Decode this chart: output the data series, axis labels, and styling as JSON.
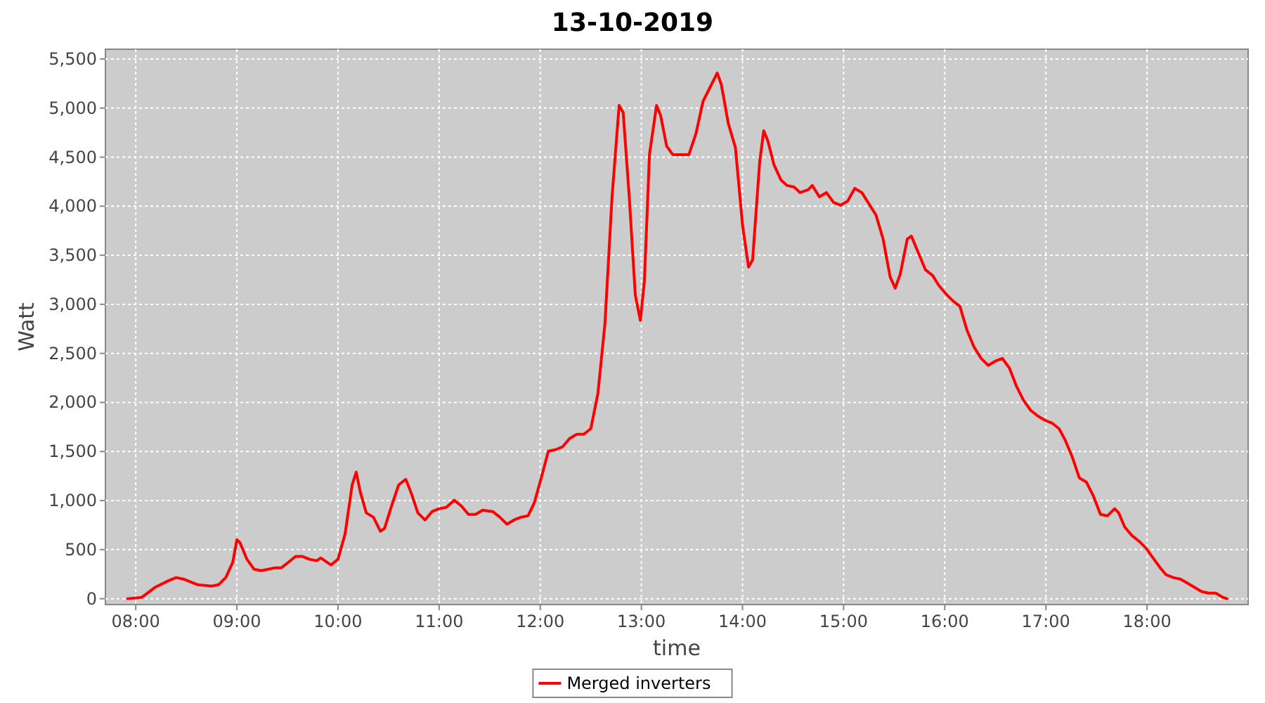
{
  "chart_data": {
    "type": "line",
    "title": "13-10-2019",
    "xlabel": "time",
    "ylabel": "Watt",
    "xlim": [
      7.7,
      19.0
    ],
    "ylim": [
      -60,
      5600
    ],
    "xticks": [
      {
        "value": 8,
        "label": "08:00"
      },
      {
        "value": 9,
        "label": "09:00"
      },
      {
        "value": 10,
        "label": "10:00"
      },
      {
        "value": 11,
        "label": "11:00"
      },
      {
        "value": 12,
        "label": "12:00"
      },
      {
        "value": 13,
        "label": "13:00"
      },
      {
        "value": 14,
        "label": "14:00"
      },
      {
        "value": 15,
        "label": "15:00"
      },
      {
        "value": 16,
        "label": "16:00"
      },
      {
        "value": 17,
        "label": "17:00"
      },
      {
        "value": 18,
        "label": "18:00"
      }
    ],
    "yticks": [
      0,
      500,
      {
        "value": 1000,
        "label": "1,000"
      },
      {
        "value": 1500,
        "label": "1,500"
      },
      {
        "value": 2000,
        "label": "2,000"
      },
      {
        "value": 2500,
        "label": "2,500"
      },
      {
        "value": 3000,
        "label": "3,000"
      },
      {
        "value": 3500,
        "label": "3,500"
      },
      {
        "value": 4000,
        "label": "4,000"
      },
      {
        "value": 4500,
        "label": "4,500"
      },
      {
        "value": 5000,
        "label": "5,000"
      },
      {
        "value": 5500,
        "label": "5,500"
      }
    ],
    "grid": true,
    "legend": "bottom",
    "marker": "none",
    "line_style": "solid",
    "x": [
      7.92,
      8.06,
      8.19,
      8.33,
      8.4,
      8.47,
      8.61,
      8.75,
      8.82,
      8.89,
      8.96,
      9.0,
      9.03,
      9.1,
      9.17,
      9.24,
      9.31,
      9.38,
      9.44,
      9.51,
      9.58,
      9.65,
      9.72,
      9.79,
      9.83,
      9.93,
      10.0,
      10.07,
      10.14,
      10.18,
      10.22,
      10.28,
      10.35,
      10.42,
      10.46,
      10.53,
      10.6,
      10.67,
      10.72,
      10.79,
      10.86,
      10.93,
      11.0,
      11.07,
      11.15,
      11.22,
      11.29,
      11.36,
      11.43,
      11.53,
      11.6,
      11.67,
      11.74,
      11.81,
      11.88,
      11.94,
      12.01,
      12.08,
      12.15,
      12.22,
      12.29,
      12.36,
      12.43,
      12.5,
      12.57,
      12.64,
      12.71,
      12.78,
      12.82,
      12.88,
      12.94,
      12.99,
      13.03,
      13.08,
      13.15,
      13.19,
      13.25,
      13.31,
      13.39,
      13.47,
      13.54,
      13.61,
      13.68,
      13.75,
      13.79,
      13.86,
      13.93,
      14.0,
      14.06,
      14.1,
      14.17,
      14.21,
      14.25,
      14.31,
      14.38,
      14.44,
      14.51,
      14.57,
      14.65,
      14.69,
      14.76,
      14.83,
      14.9,
      14.97,
      15.04,
      15.11,
      15.18,
      15.25,
      15.32,
      15.39,
      15.46,
      15.51,
      15.56,
      15.63,
      15.67,
      15.74,
      15.81,
      15.88,
      15.94,
      16.01,
      16.08,
      16.15,
      16.22,
      16.29,
      16.36,
      16.43,
      16.5,
      16.57,
      16.64,
      16.71,
      16.78,
      16.85,
      16.92,
      16.99,
      17.06,
      17.13,
      17.19,
      17.26,
      17.33,
      17.4,
      17.47,
      17.54,
      17.61,
      17.68,
      17.72,
      17.78,
      17.85,
      17.92,
      17.99,
      18.06,
      18.13,
      18.19,
      18.26,
      18.33,
      18.4,
      18.47,
      18.54,
      18.61,
      18.68,
      18.75,
      18.79
    ],
    "series": [
      {
        "name": "Merged inverters",
        "color": "#ff0000",
        "values": [
          0,
          14,
          115,
          186,
          215,
          200,
          143,
          129,
          143,
          215,
          372,
          600,
          573,
          401,
          300,
          286,
          300,
          315,
          315,
          372,
          430,
          430,
          401,
          387,
          415,
          344,
          401,
          659,
          1160,
          1290,
          1089,
          874,
          831,
          687,
          716,
          945,
          1160,
          1217,
          1089,
          874,
          802,
          888,
          917,
          931,
          1003,
          945,
          859,
          859,
          902,
          888,
          831,
          759,
          802,
          831,
          845,
          974,
          1232,
          1504,
          1518,
          1547,
          1633,
          1676,
          1676,
          1733,
          2091,
          2807,
          4096,
          5027,
          4956,
          4096,
          3094,
          2836,
          3237,
          4526,
          5027,
          4927,
          4612,
          4526,
          4526,
          4526,
          4741,
          5070,
          5213,
          5357,
          5242,
          4841,
          4597,
          3810,
          3380,
          3452,
          4454,
          4769,
          4669,
          4426,
          4268,
          4211,
          4196,
          4139,
          4168,
          4211,
          4096,
          4139,
          4039,
          4010,
          4053,
          4182,
          4139,
          4025,
          3910,
          3667,
          3280,
          3165,
          3308,
          3667,
          3695,
          3523,
          3351,
          3294,
          3194,
          3108,
          3036,
          2979,
          2736,
          2564,
          2449,
          2378,
          2421,
          2449,
          2349,
          2163,
          2020,
          1919,
          1862,
          1819,
          1790,
          1733,
          1618,
          1447,
          1232,
          1189,
          1046,
          859,
          845,
          917,
          874,
          730,
          645,
          587,
          516,
          415,
          315,
          243,
          215,
          200,
          158,
          115,
          72,
          57,
          57,
          14,
          0
        ]
      }
    ]
  }
}
